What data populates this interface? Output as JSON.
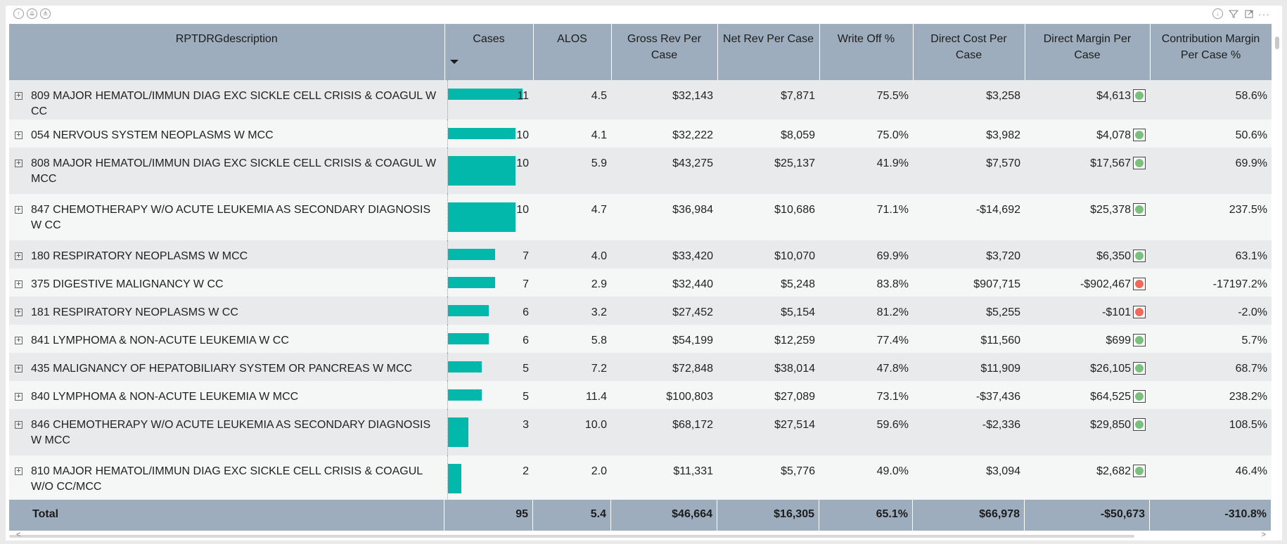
{
  "toolbar": {
    "left_icons": [
      "drill-up-icon",
      "expand-all-icon",
      "drill-hierarchy-icon"
    ],
    "right_icons": [
      "drill-down-icon",
      "filter-icon",
      "focus-mode-icon",
      "more-options-icon"
    ]
  },
  "table": {
    "columns": [
      "RPTDRGdescription",
      "Cases",
      "ALOS",
      "Gross Rev Per Case",
      "Net Rev Per Case",
      "Write Off %",
      "Direct Cost Per Case",
      "Direct Margin Per Case",
      "Contribution Margin Per Case %"
    ],
    "sort_column": "Cases",
    "sort_direction": "descending",
    "rows": [
      {
        "desc": "809 MAJOR HEMATOL/IMMUN DIAG EXC SICKLE CELL CRISIS & COAGUL W CC",
        "cases": "11",
        "cases_value": 11,
        "alos": "4.5",
        "gross": "$32,143",
        "net": "$7,871",
        "writeoff": "75.5%",
        "cost": "$3,258",
        "margin": "$4,613",
        "kpi": "green",
        "contrib": "58.6%"
      },
      {
        "desc": "054 NERVOUS SYSTEM NEOPLASMS W MCC",
        "cases": "10",
        "cases_value": 10,
        "alos": "4.1",
        "gross": "$32,222",
        "net": "$8,059",
        "writeoff": "75.0%",
        "cost": "$3,982",
        "margin": "$4,078",
        "kpi": "green",
        "contrib": "50.6%"
      },
      {
        "desc": "808 MAJOR HEMATOL/IMMUN DIAG EXC SICKLE CELL CRISIS & COAGUL W MCC",
        "cases": "10",
        "cases_value": 10,
        "alos": "5.9",
        "gross": "$43,275",
        "net": "$25,137",
        "writeoff": "41.9%",
        "cost": "$7,570",
        "margin": "$17,567",
        "kpi": "green",
        "contrib": "69.9%"
      },
      {
        "desc": "847 CHEMOTHERAPY W/O ACUTE LEUKEMIA AS SECONDARY DIAGNOSIS W CC",
        "cases": "10",
        "cases_value": 10,
        "alos": "4.7",
        "gross": "$36,984",
        "net": "$10,686",
        "writeoff": "71.1%",
        "cost": "-$14,692",
        "margin": "$25,378",
        "kpi": "green",
        "contrib": "237.5%"
      },
      {
        "desc": "180 RESPIRATORY NEOPLASMS W MCC",
        "cases": "7",
        "cases_value": 7,
        "alos": "4.0",
        "gross": "$33,420",
        "net": "$10,070",
        "writeoff": "69.9%",
        "cost": "$3,720",
        "margin": "$6,350",
        "kpi": "green",
        "contrib": "63.1%"
      },
      {
        "desc": "375 DIGESTIVE MALIGNANCY W CC",
        "cases": "7",
        "cases_value": 7,
        "alos": "2.9",
        "gross": "$32,440",
        "net": "$5,248",
        "writeoff": "83.8%",
        "cost": "$907,715",
        "margin": "-$902,467",
        "kpi": "red",
        "contrib": "-17197.2%"
      },
      {
        "desc": "181 RESPIRATORY NEOPLASMS W CC",
        "cases": "6",
        "cases_value": 6,
        "alos": "3.2",
        "gross": "$27,452",
        "net": "$5,154",
        "writeoff": "81.2%",
        "cost": "$5,255",
        "margin": "-$101",
        "kpi": "red",
        "contrib": "-2.0%"
      },
      {
        "desc": "841 LYMPHOMA & NON-ACUTE LEUKEMIA W CC",
        "cases": "6",
        "cases_value": 6,
        "alos": "5.8",
        "gross": "$54,199",
        "net": "$12,259",
        "writeoff": "77.4%",
        "cost": "$11,560",
        "margin": "$699",
        "kpi": "green",
        "contrib": "5.7%"
      },
      {
        "desc": "435 MALIGNANCY OF HEPATOBILIARY SYSTEM OR PANCREAS W MCC",
        "cases": "5",
        "cases_value": 5,
        "alos": "7.2",
        "gross": "$72,848",
        "net": "$38,014",
        "writeoff": "47.8%",
        "cost": "$11,909",
        "margin": "$26,105",
        "kpi": "green",
        "contrib": "68.7%"
      },
      {
        "desc": "840 LYMPHOMA & NON-ACUTE LEUKEMIA W MCC",
        "cases": "5",
        "cases_value": 5,
        "alos": "11.4",
        "gross": "$100,803",
        "net": "$27,089",
        "writeoff": "73.1%",
        "cost": "-$37,436",
        "margin": "$64,525",
        "kpi": "green",
        "contrib": "238.2%"
      },
      {
        "desc": "846 CHEMOTHERAPY W/O ACUTE LEUKEMIA AS SECONDARY DIAGNOSIS W MCC",
        "cases": "3",
        "cases_value": 3,
        "alos": "10.0",
        "gross": "$68,172",
        "net": "$27,514",
        "writeoff": "59.6%",
        "cost": "-$2,336",
        "margin": "$29,850",
        "kpi": "green",
        "contrib": "108.5%"
      },
      {
        "desc": "810 MAJOR HEMATOL/IMMUN DIAG EXC SICKLE CELL CRISIS & COAGUL W/O CC/MCC",
        "cases": "2",
        "cases_value": 2,
        "alos": "2.0",
        "gross": "$11,331",
        "net": "$5,776",
        "writeoff": "49.0%",
        "cost": "$3,094",
        "margin": "$2,682",
        "kpi": "green",
        "contrib": "46.4%"
      }
    ],
    "total": {
      "label": "Total",
      "cases": "95",
      "alos": "5.4",
      "gross": "$46,664",
      "net": "$16,305",
      "writeoff": "65.1%",
      "cost": "$66,978",
      "margin": "-$50,673",
      "contrib": "-310.8%"
    }
  },
  "colors": {
    "header_bg": "#9dadbd",
    "bar": "#01b8aa",
    "kpi_good": "#79c17c",
    "kpi_bad": "#f06a5a"
  }
}
